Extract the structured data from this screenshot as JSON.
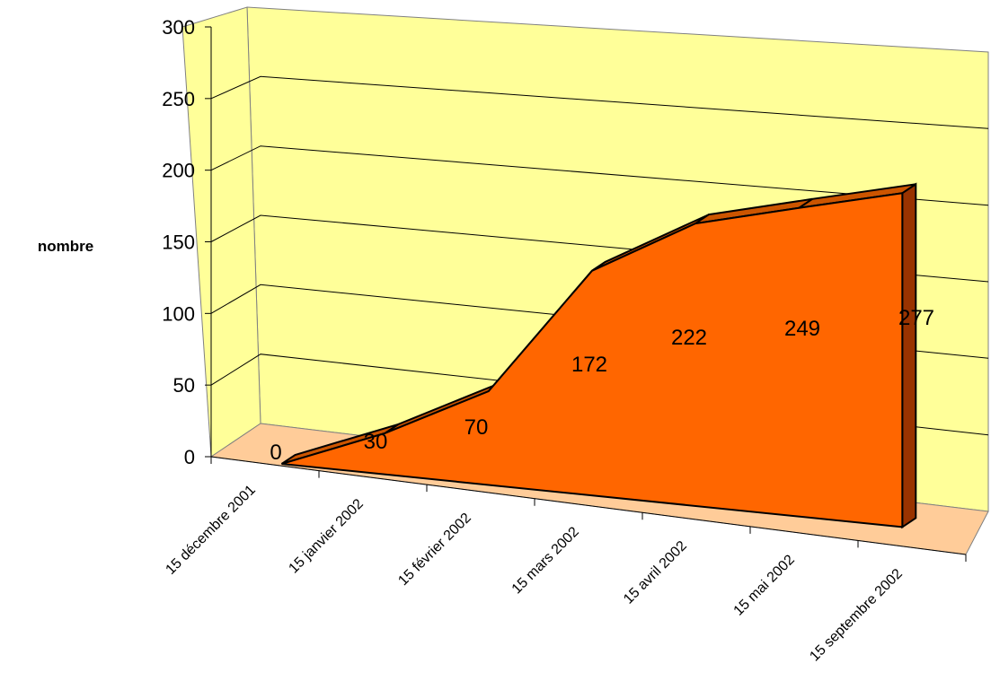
{
  "chart_data": {
    "type": "area",
    "style": "3d",
    "categories": [
      "15 décembre 2001",
      "15 janvier 2002",
      "15 février 2002",
      "15 mars 2002",
      "15 avril 2002",
      "15 mai 2002",
      "15 septembre 2002"
    ],
    "series": [
      {
        "values": [
          0,
          30,
          70,
          172,
          222,
          249,
          277
        ]
      }
    ],
    "data_labels": [
      "0",
      "30",
      "70",
      "172",
      "222",
      "249",
      "277"
    ],
    "ylabel": "nombre",
    "ylim": [
      0,
      300
    ],
    "yticks": [
      0,
      50,
      100,
      150,
      200,
      250,
      300
    ],
    "ytick_labels": [
      "0",
      "50",
      "100",
      "150",
      "200",
      "250",
      "300"
    ],
    "grid": true,
    "legend": "none",
    "colors": {
      "wall": "#ffff99",
      "floor": "#ffcc99",
      "area_front": "#ff6600",
      "area_top": "#cc5500",
      "area_side": "#993300",
      "gridline": "#000000"
    }
  }
}
